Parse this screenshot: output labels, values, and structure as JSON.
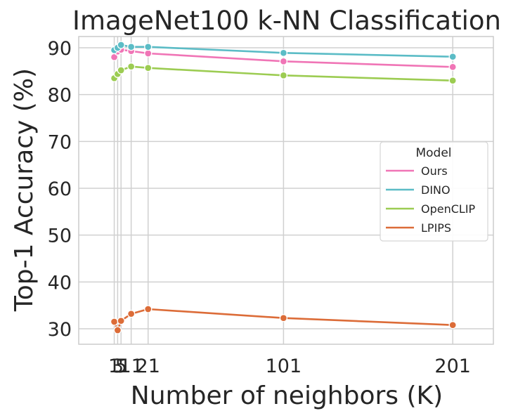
{
  "chart_data": {
    "type": "line",
    "title": "ImageNet100 k-NN Classification",
    "xlabel": "Number of neighbors (K)",
    "ylabel": "Top-1 Accuracy (%)",
    "x": [
      1,
      3,
      5,
      11,
      21,
      101,
      201
    ],
    "x_tick_labels": [
      "1",
      "3",
      "5",
      "11",
      "21",
      "101",
      "201"
    ],
    "xlim": [
      -20,
      225
    ],
    "ylim": [
      26.7,
      92.4
    ],
    "y_ticks": [
      30,
      40,
      50,
      60,
      70,
      80,
      90
    ],
    "y_tick_labels": [
      "30",
      "40",
      "50",
      "60",
      "70",
      "80",
      "90"
    ],
    "grid": true,
    "legend": {
      "title": "Model",
      "placement": "center-right"
    },
    "series": [
      {
        "name": "Ours",
        "color": "#f075b6",
        "values": [
          88.0,
          89.2,
          89.6,
          89.3,
          88.8,
          87.1,
          85.9
        ]
      },
      {
        "name": "DINO",
        "color": "#5bbcc6",
        "values": [
          89.5,
          90.0,
          90.6,
          90.2,
          90.2,
          88.9,
          88.1
        ]
      },
      {
        "name": "OpenCLIP",
        "color": "#9ccc52",
        "values": [
          83.5,
          84.4,
          85.2,
          86.0,
          85.7,
          84.1,
          83.0
        ]
      },
      {
        "name": "LPIPS",
        "color": "#dc6c38",
        "values": [
          31.5,
          29.7,
          31.7,
          33.2,
          34.2,
          32.3,
          30.8
        ]
      }
    ]
  }
}
